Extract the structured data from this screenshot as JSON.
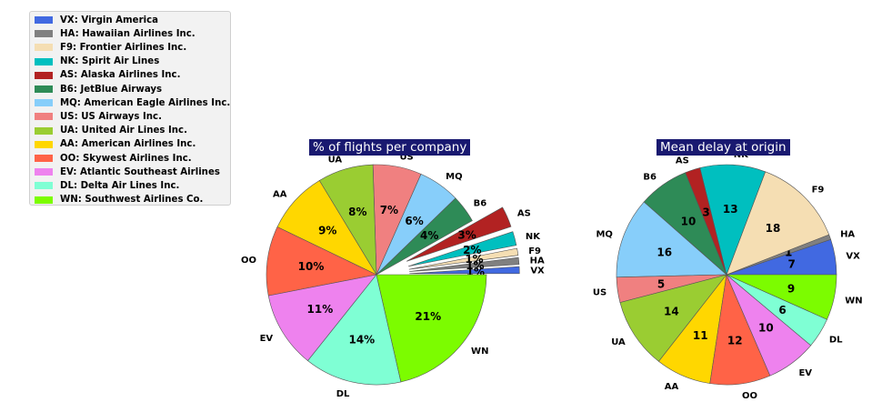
{
  "legend": [
    {
      "code": "VX",
      "label": "VX: Virgin America",
      "color": "#4169E1"
    },
    {
      "code": "HA",
      "label": "HA: Hawaiian Airlines Inc.",
      "color": "#808080"
    },
    {
      "code": "F9",
      "label": "F9: Frontier Airlines Inc.",
      "color": "#F5DEB3"
    },
    {
      "code": "NK",
      "label": "NK: Spirit Air Lines",
      "color": "#00BFBF"
    },
    {
      "code": "AS",
      "label": "AS: Alaska Airlines Inc.",
      "color": "#B22222"
    },
    {
      "code": "B6",
      "label": "B6: JetBlue Airways",
      "color": "#2E8B57"
    },
    {
      "code": "MQ",
      "label": "MQ: American Eagle Airlines Inc.",
      "color": "#87CEFA"
    },
    {
      "code": "US",
      "label": "US: US Airways Inc.",
      "color": "#F08080"
    },
    {
      "code": "UA",
      "label": "UA: United Air Lines Inc.",
      "color": "#9ACD32"
    },
    {
      "code": "AA",
      "label": "AA: American Airlines Inc.",
      "color": "#FFD700"
    },
    {
      "code": "OO",
      "label": "OO: Skywest Airlines Inc.",
      "color": "#FF6347"
    },
    {
      "code": "EV",
      "label": "EV: Atlantic Southeast Airlines",
      "color": "#EE82EE"
    },
    {
      "code": "DL",
      "label": "DL: Delta Air Lines Inc.",
      "color": "#7FFFD4"
    },
    {
      "code": "WN",
      "label": "WN: Southwest Airlines Co.",
      "color": "#7CFC00"
    }
  ],
  "chart_data": [
    {
      "type": "pie",
      "title": "% of flights per company",
      "start_angle_deg": 0,
      "counterclockwise": true,
      "categories": [
        "VX",
        "HA",
        "F9",
        "NK",
        "AS",
        "B6",
        "MQ",
        "US",
        "UA",
        "AA",
        "OO",
        "EV",
        "DL",
        "WN"
      ],
      "values": [
        1,
        1,
        1,
        2,
        3,
        4,
        6,
        7,
        8,
        9,
        10,
        11,
        14,
        21
      ],
      "value_labels": [
        "1%",
        "1%",
        "1%",
        "2%",
        "3%",
        "4%",
        "6%",
        "7%",
        "8%",
        "9%",
        "10%",
        "11%",
        "14%",
        "21%"
      ],
      "exploded": [
        "VX",
        "HA",
        "F9",
        "NK",
        "AS"
      ]
    },
    {
      "type": "pie",
      "title": "Mean delay at origin",
      "start_angle_deg": 0,
      "counterclockwise": true,
      "categories": [
        "VX",
        "HA",
        "F9",
        "NK",
        "AS",
        "B6",
        "MQ",
        "US",
        "UA",
        "AA",
        "OO",
        "EV",
        "DL",
        "WN"
      ],
      "values": [
        7,
        1,
        18,
        13,
        3,
        10,
        16,
        5,
        14,
        11,
        12,
        10,
        6,
        9
      ],
      "value_labels": [
        "7",
        "1",
        "18",
        "13",
        "3",
        "10",
        "16",
        "5",
        "14",
        "11",
        "12",
        "10",
        "6",
        "9"
      ],
      "exploded": []
    }
  ]
}
